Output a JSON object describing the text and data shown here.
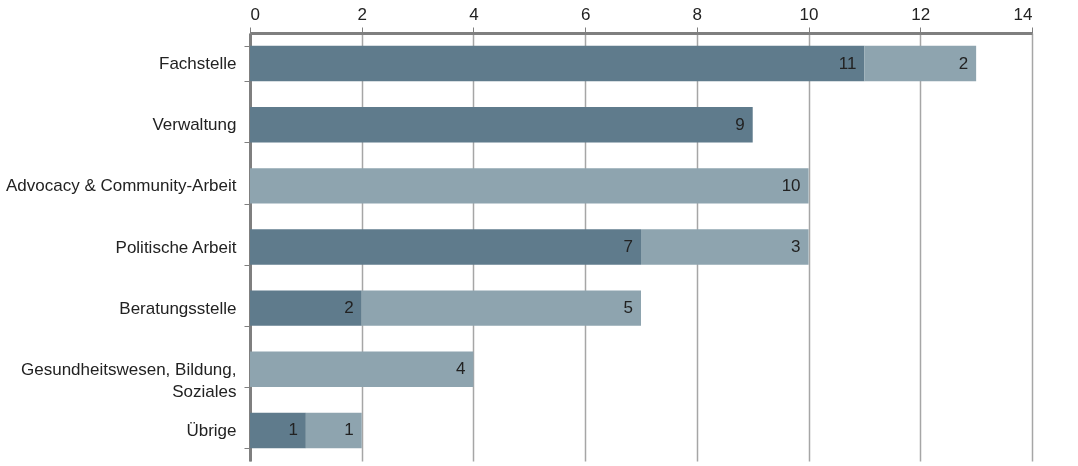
{
  "chart_data": {
    "type": "bar",
    "orientation": "horizontal",
    "stacked": true,
    "categories": [
      "Fachstelle",
      "Verwaltung",
      "Advocacy & Community-Arbeit",
      "Politische Arbeit",
      "Beratungsstelle",
      "Gesundheitswesen, Bildung, Soziales",
      "Übrige"
    ],
    "series": [
      {
        "color": "#5f7b8c",
        "values": [
          11,
          9,
          null,
          7,
          2,
          null,
          1
        ]
      },
      {
        "color": "#8ea4af",
        "values": [
          2,
          null,
          10,
          3,
          5,
          4,
          1
        ]
      }
    ],
    "xlim": [
      0,
      14
    ],
    "xticks": [
      0,
      2,
      4,
      6,
      8,
      10,
      12,
      14
    ],
    "grid": "x",
    "data_labels": true,
    "legend": false
  }
}
